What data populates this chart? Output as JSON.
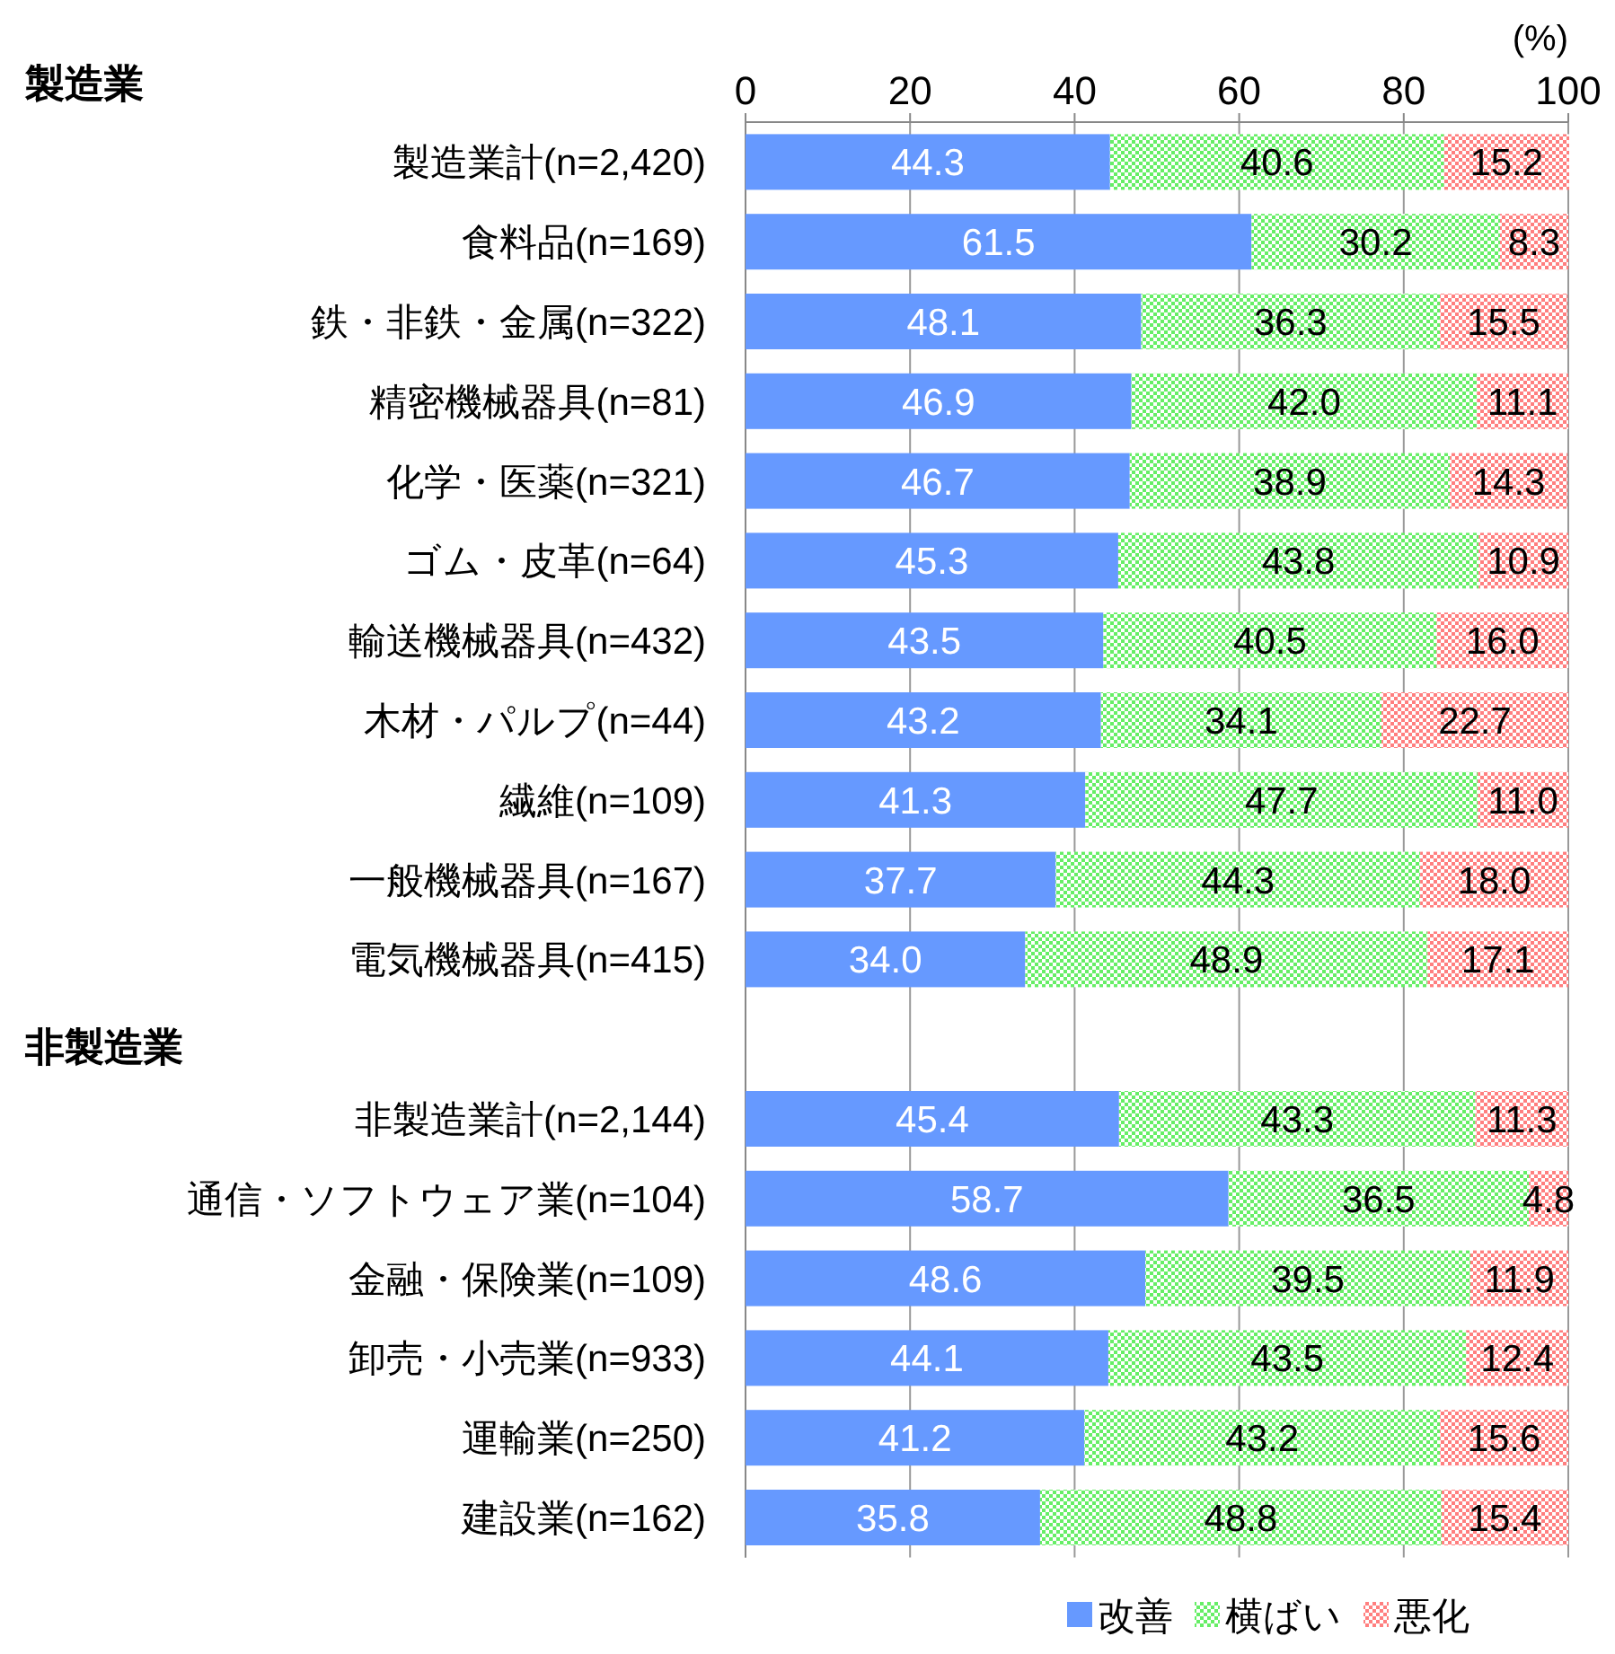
{
  "chart_data": {
    "type": "bar",
    "orientation": "horizontal",
    "stacked": true,
    "xlabel": "(%)",
    "annotations": [
      "製造業",
      "非製造業"
    ],
    "categories": [
      "製造業計(n=2,420)",
      "食料品(n=169)",
      "鉄・非鉄・金属(n=322)",
      "精密機械器具(n=81)",
      "化学・医薬(n=321)",
      "ゴム・皮革(n=64)",
      "輸送機械器具(n=432)",
      "木材・パルプ(n=44)",
      "繊維(n=109)",
      "一般機械器具(n=167)",
      "電気機械器具(n=415)",
      null,
      "非製造業計(n=2,144)",
      "通信・ソフトウェア業(n=104)",
      "金融・保険業(n=109)",
      "卸売・小売業(n=933)",
      "運輸業(n=250)",
      "建設業(n=162)"
    ],
    "xlim": [
      0,
      100
    ],
    "xticks": [
      0,
      20,
      40,
      60,
      80,
      100
    ],
    "grid": "x",
    "legend": "bottom right",
    "series": [
      {
        "name": "改善",
        "color": "#6699ff",
        "values": [
          44.3,
          61.5,
          48.1,
          46.9,
          46.7,
          45.3,
          43.5,
          43.2,
          41.3,
          37.7,
          34.0,
          null,
          45.4,
          58.7,
          48.6,
          44.1,
          41.2,
          35.8
        ],
        "value_labels": [
          "44.3",
          "61.5",
          "48.1",
          "46.9",
          "46.7",
          "45.3",
          "43.5",
          "43.2",
          "41.3",
          "37.7",
          "34.0",
          null,
          "45.4",
          "58.7",
          "48.6",
          "44.1",
          "41.2",
          "35.8"
        ]
      },
      {
        "name": "横ばい",
        "color": "#66ee66",
        "values": [
          40.6,
          30.2,
          36.3,
          42.0,
          38.9,
          43.8,
          40.5,
          34.1,
          47.7,
          44.3,
          48.9,
          null,
          43.3,
          36.5,
          39.5,
          43.5,
          43.2,
          48.8
        ],
        "value_labels": [
          "40.6",
          "30.2",
          "36.3",
          "42.0",
          "38.9",
          "43.8",
          "40.5",
          "34.1",
          "47.7",
          "44.3",
          "48.9",
          null,
          "43.3",
          "36.5",
          "39.5",
          "43.5",
          "43.2",
          "48.8"
        ]
      },
      {
        "name": "悪化",
        "color": "#ff7f7f",
        "values": [
          15.2,
          8.3,
          15.5,
          11.1,
          14.3,
          10.9,
          16.0,
          22.7,
          11.0,
          18.0,
          17.1,
          null,
          11.3,
          4.8,
          11.9,
          12.4,
          15.6,
          15.4
        ],
        "value_labels": [
          "15.2",
          "8.3",
          "15.5",
          "11.1",
          "14.3",
          "10.9",
          "16.0",
          "22.7",
          "11.0",
          "18.0",
          "17.1",
          null,
          "11.3",
          "4.8",
          "11.9",
          "12.4",
          "15.6",
          "15.4"
        ]
      }
    ]
  }
}
